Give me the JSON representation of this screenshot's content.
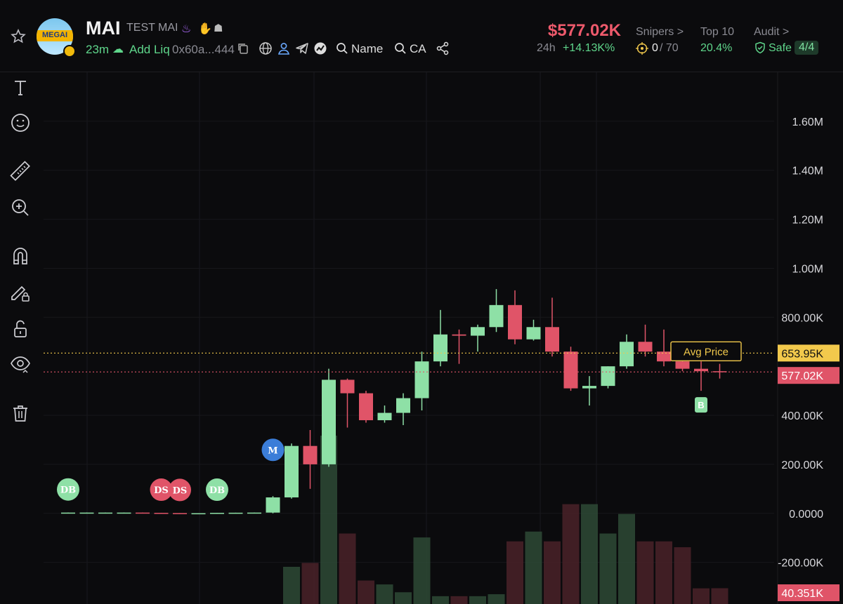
{
  "token": {
    "symbol": "MAI",
    "name": "TEST MAI",
    "logo_text": "MEGAI",
    "age": "23m",
    "add_liq": "Add Liq",
    "address": "0x60a...444",
    "search_name": "Name",
    "search_ca": "CA"
  },
  "stats": {
    "price": "$577.02K",
    "change_label": "24h",
    "change": "+14.13K%",
    "snipers_label": "Snipers >",
    "snipers_value": "0",
    "snipers_total": "/ 70",
    "top10_label": "Top 10",
    "top10_value": "20.4%",
    "audit_label": "Audit >",
    "audit_value": "Safe",
    "audit_score": "4/4"
  },
  "colors": {
    "up": "#8ee0a6",
    "down": "#e05468",
    "accent_price": "#ee5a6c",
    "avg_line": "#f2c94c",
    "background": "#0b0b0d"
  },
  "toolbar": [
    "text-tool-icon",
    "emoji-tool-icon",
    "ruler-icon",
    "zoom-in-icon",
    "magnet-icon",
    "lock-pencil-icon",
    "unlock-icon",
    "eye-icon",
    "trash-icon"
  ],
  "chart_data": {
    "type": "candlestick",
    "y_ticks": [
      "1.60M",
      "1.40M",
      "1.20M",
      "1.00M",
      "800.00K",
      "400.00K",
      "200.00K",
      "0.0000",
      "-200.00K"
    ],
    "y_tick_values": [
      1600000,
      1400000,
      1200000,
      1000000,
      800000,
      400000,
      200000,
      0,
      -200000
    ],
    "ylim": [
      -370000,
      1800000
    ],
    "avg_price_label": "Avg Price",
    "avg_price": 653950,
    "avg_price_text": "653.95K",
    "last_price": 577020,
    "last_price_text": "577.02K",
    "volume_text": "40.351K",
    "markers": [
      {
        "index": 0,
        "label": "DB",
        "side": "buy"
      },
      {
        "index": 5,
        "label": "DS",
        "side": "sell"
      },
      {
        "index": 6,
        "label": "DS",
        "side": "sell"
      },
      {
        "index": 8,
        "label": "DB",
        "side": "buy"
      },
      {
        "index": 11,
        "label": "M",
        "side": "info"
      },
      {
        "index": 34,
        "label": "B",
        "side": "buy"
      }
    ],
    "candles": [
      {
        "o": 0,
        "h": 3000,
        "l": 0,
        "c": 3000
      },
      {
        "o": 3000,
        "h": 3000,
        "l": 0,
        "c": 3000
      },
      {
        "o": 3000,
        "h": 3000,
        "l": 0,
        "c": 3000
      },
      {
        "o": 3000,
        "h": 3000,
        "l": 0,
        "c": 3000
      },
      {
        "o": 3000,
        "h": 3000,
        "l": 0,
        "c": 2000
      },
      {
        "o": 2000,
        "h": 2000,
        "l": 0,
        "c": 1000
      },
      {
        "o": 1000,
        "h": 1000,
        "l": 0,
        "c": 500
      },
      {
        "o": 500,
        "h": 500,
        "l": 0,
        "c": 500
      },
      {
        "o": 500,
        "h": 2000,
        "l": 0,
        "c": 2000
      },
      {
        "o": 2000,
        "h": 2500,
        "l": 0,
        "c": 2500
      },
      {
        "o": 2500,
        "h": 3000,
        "l": 0,
        "c": 3000
      },
      {
        "o": 3000,
        "h": 70000,
        "l": 0,
        "c": 65000
      },
      {
        "o": 65000,
        "h": 285000,
        "l": 60000,
        "c": 275000
      },
      {
        "o": 275000,
        "h": 340000,
        "l": 100000,
        "c": 200000
      },
      {
        "o": 200000,
        "h": 590000,
        "l": 190000,
        "c": 545000
      },
      {
        "o": 545000,
        "h": 550000,
        "l": 350000,
        "c": 490000
      },
      {
        "o": 490000,
        "h": 500000,
        "l": 370000,
        "c": 380000
      },
      {
        "o": 380000,
        "h": 440000,
        "l": 370000,
        "c": 410000
      },
      {
        "o": 410000,
        "h": 490000,
        "l": 360000,
        "c": 470000
      },
      {
        "o": 470000,
        "h": 660000,
        "l": 420000,
        "c": 620000
      },
      {
        "o": 620000,
        "h": 830000,
        "l": 600000,
        "c": 730000
      },
      {
        "o": 730000,
        "h": 750000,
        "l": 610000,
        "c": 725000
      },
      {
        "o": 725000,
        "h": 770000,
        "l": 660000,
        "c": 760000
      },
      {
        "o": 760000,
        "h": 915000,
        "l": 740000,
        "c": 850000
      },
      {
        "o": 850000,
        "h": 910000,
        "l": 690000,
        "c": 710000
      },
      {
        "o": 710000,
        "h": 790000,
        "l": 705000,
        "c": 760000
      },
      {
        "o": 760000,
        "h": 880000,
        "l": 640000,
        "c": 660000
      },
      {
        "o": 660000,
        "h": 680000,
        "l": 500000,
        "c": 510000
      },
      {
        "o": 510000,
        "h": 560000,
        "l": 440000,
        "c": 520000
      },
      {
        "o": 520000,
        "h": 600000,
        "l": 510000,
        "c": 600000
      },
      {
        "o": 600000,
        "h": 730000,
        "l": 590000,
        "c": 700000
      },
      {
        "o": 700000,
        "h": 770000,
        "l": 640000,
        "c": 660000
      },
      {
        "o": 660000,
        "h": 750000,
        "l": 600000,
        "c": 620000
      },
      {
        "o": 620000,
        "h": 640000,
        "l": 580000,
        "c": 590000
      },
      {
        "o": 590000,
        "h": 620000,
        "l": 500000,
        "c": 580000
      },
      {
        "o": 580000,
        "h": 610000,
        "l": 550000,
        "c": 577020
      }
    ],
    "volumes": [
      0,
      0,
      0,
      0,
      0,
      0,
      0,
      0,
      0,
      0,
      0,
      0,
      95000,
      105000,
      430000,
      180000,
      60000,
      50000,
      30000,
      170000,
      20000,
      20000,
      20000,
      25000,
      160000,
      185000,
      160000,
      255000,
      255000,
      180000,
      230000,
      160000,
      160000,
      145000,
      40000,
      40351
    ]
  }
}
